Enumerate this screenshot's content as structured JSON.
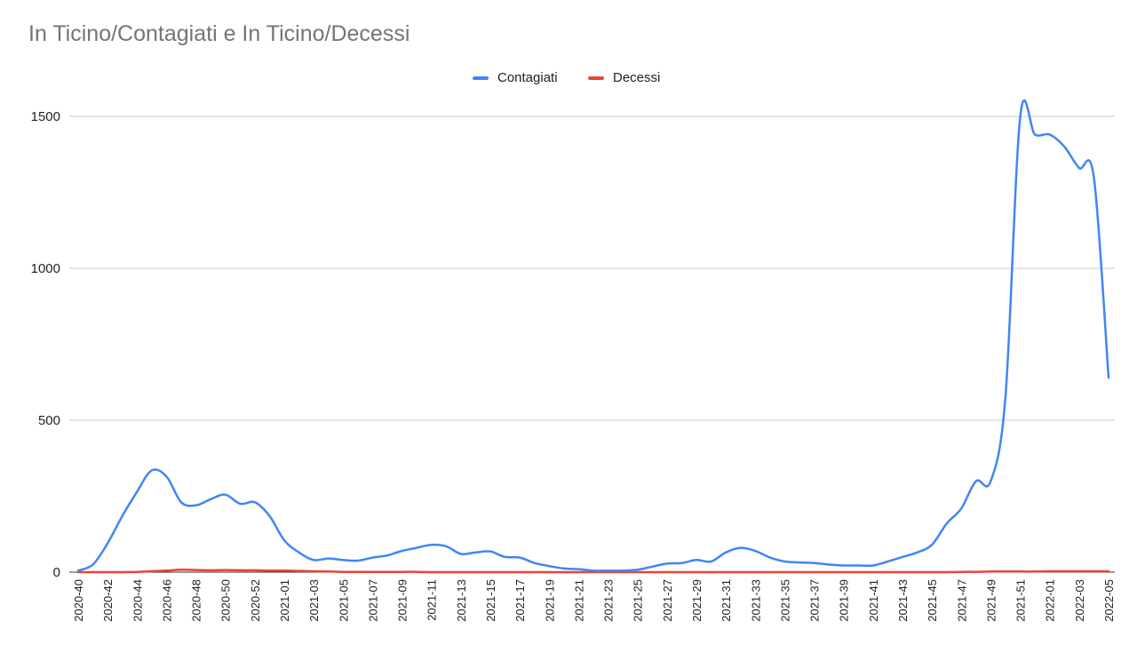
{
  "chart_data": {
    "type": "line",
    "title": "In Ticino/Contagiati e In Ticino/Decessi",
    "legend_position": "top",
    "grid": true,
    "ylim": [
      0,
      1500
    ],
    "y_ticks": [
      0,
      500,
      1000,
      1500
    ],
    "x_tick_labels": [
      "2020-40",
      "2020-42",
      "2020-44",
      "2020-46",
      "2020-48",
      "2020-50",
      "2020-52",
      "2021-01",
      "2021-03",
      "2021-05",
      "2021-07",
      "2021-09",
      "2021-11",
      "2021-13",
      "2021-15",
      "2021-17",
      "2021-19",
      "2021-21",
      "2021-23",
      "2021-25",
      "2021-27",
      "2021-29",
      "2021-31",
      "2021-33",
      "2021-35",
      "2021-37",
      "2021-39",
      "2021-41",
      "2021-43",
      "2021-45",
      "2021-47",
      "2021-49",
      "2021-51",
      "2022-01",
      "2022-03",
      "2022-05"
    ],
    "categories": [
      "2020-40",
      "2020-41",
      "2020-42",
      "2020-43",
      "2020-44",
      "2020-45",
      "2020-46",
      "2020-47",
      "2020-48",
      "2020-49",
      "2020-50",
      "2020-51",
      "2020-52",
      "2020-53",
      "2021-01",
      "2021-02",
      "2021-03",
      "2021-04",
      "2021-05",
      "2021-06",
      "2021-07",
      "2021-08",
      "2021-09",
      "2021-10",
      "2021-11",
      "2021-12",
      "2021-13",
      "2021-14",
      "2021-15",
      "2021-16",
      "2021-17",
      "2021-18",
      "2021-19",
      "2021-20",
      "2021-21",
      "2021-22",
      "2021-23",
      "2021-24",
      "2021-25",
      "2021-26",
      "2021-27",
      "2021-28",
      "2021-29",
      "2021-30",
      "2021-31",
      "2021-32",
      "2021-33",
      "2021-34",
      "2021-35",
      "2021-36",
      "2021-37",
      "2021-38",
      "2021-39",
      "2021-40",
      "2021-41",
      "2021-42",
      "2021-43",
      "2021-44",
      "2021-45",
      "2021-46",
      "2021-47",
      "2021-48",
      "2021-49",
      "2021-50",
      "2021-51",
      "2021-52",
      "2022-01",
      "2022-02",
      "2022-03",
      "2022-04",
      "2022-05"
    ],
    "series": [
      {
        "name": "Contagiati",
        "color": "#4285f4",
        "values": [
          5,
          25,
          95,
          185,
          265,
          335,
          315,
          230,
          220,
          240,
          255,
          225,
          230,
          185,
          105,
          65,
          40,
          45,
          40,
          38,
          48,
          55,
          70,
          80,
          90,
          85,
          60,
          65,
          68,
          50,
          48,
          30,
          20,
          12,
          10,
          5,
          5,
          5,
          8,
          18,
          28,
          30,
          40,
          35,
          65,
          80,
          70,
          48,
          35,
          32,
          30,
          25,
          22,
          22,
          22,
          35,
          50,
          65,
          90,
          160,
          210,
          300,
          300,
          580,
          1500,
          1440,
          1440,
          1400,
          1330,
          1300,
          640
        ]
      },
      {
        "name": "Decessi",
        "color": "#ea4335",
        "values": [
          0,
          0,
          0,
          0,
          1,
          3,
          5,
          8,
          7,
          6,
          7,
          6,
          6,
          5,
          5,
          4,
          3,
          2,
          1,
          1,
          1,
          1,
          1,
          1,
          0,
          0,
          0,
          0,
          0,
          0,
          0,
          0,
          0,
          0,
          0,
          0,
          0,
          0,
          0,
          0,
          0,
          0,
          0,
          0,
          0,
          0,
          0,
          0,
          0,
          0,
          0,
          0,
          0,
          0,
          0,
          0,
          0,
          0,
          0,
          0,
          1,
          1,
          2,
          2,
          2,
          2,
          3,
          3,
          3,
          3,
          3
        ]
      }
    ]
  }
}
